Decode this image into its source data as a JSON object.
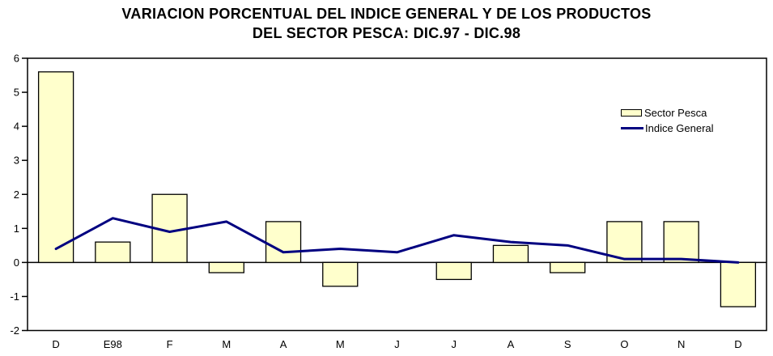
{
  "title": {
    "line1": "VARIACION PORCENTUAL DEL INDICE GENERAL Y DE LOS PRODUCTOS",
    "line2": "DEL SECTOR PESCA: DIC.97 - DIC.98"
  },
  "legend": {
    "bar_label": "Sector Pesca",
    "line_label": "Indice General"
  },
  "colors": {
    "bar_fill": "#FFFFCC",
    "bar_border": "#000000",
    "line": "#000080",
    "axis": "#000000",
    "text": "#000000",
    "background": "#FFFFFF"
  },
  "chart_data": {
    "type": "combo",
    "title": "VARIACION PORCENTUAL DEL INDICE GENERAL Y DE LOS PRODUCTOS DEL SECTOR PESCA: DIC.97 - DIC.98",
    "categories": [
      "D",
      "E98",
      "F",
      "M",
      "A",
      "M",
      "J",
      "J",
      "A",
      "S",
      "O",
      "N",
      "D"
    ],
    "series": [
      {
        "name": "Sector Pesca",
        "type": "bar",
        "values": [
          5.6,
          0.6,
          2.0,
          -0.3,
          1.2,
          -0.7,
          0.0,
          -0.5,
          0.5,
          -0.3,
          1.2,
          1.2,
          -1.3
        ]
      },
      {
        "name": "Indice General",
        "type": "line",
        "values": [
          0.4,
          1.3,
          0.9,
          1.2,
          0.3,
          0.4,
          0.3,
          0.8,
          0.6,
          0.5,
          0.1,
          0.1,
          0.0
        ]
      }
    ],
    "xlabel": "",
    "ylabel": "",
    "ylim": [
      -2,
      6
    ],
    "y_tick_labels": [
      "-2",
      "-1",
      "0",
      "1",
      "2",
      "3",
      "4",
      "5",
      "6"
    ],
    "grid": false,
    "legend_position": "upper-right"
  }
}
